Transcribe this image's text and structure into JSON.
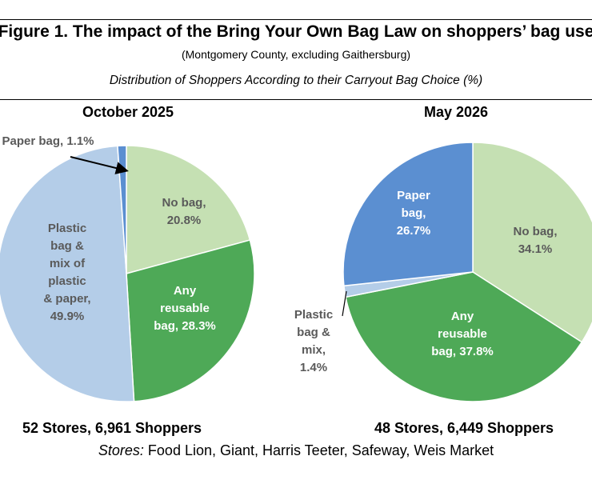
{
  "header": {
    "title": "Figure 1. The impact of the Bring Your Own Bag Law on shoppers’ bag use",
    "subtitle": "(Montgomery County, excluding Gaithersburg)",
    "caption": "Distribution of Shoppers According to their Carryout Bag Choice (%)"
  },
  "footer": {
    "stores_label": "Stores:",
    "stores_list": "Food Lion, Giant, Harris Teeter, Safeway, Weis Market"
  },
  "chart_data": [
    {
      "type": "pie",
      "title": "October 2025",
      "summary": "52 Stores, 6,961 Shoppers",
      "slices": [
        {
          "label": [
            "No bag,",
            "20.8%"
          ],
          "value": 20.8,
          "color": "#c5e0b3",
          "text_color": "#5a5a5a"
        },
        {
          "label": [
            "Any",
            "reusable",
            "bag, 28.3%"
          ],
          "value": 28.3,
          "color": "#4ea957",
          "text_color": "#ffffff"
        },
        {
          "label": [
            "Plastic",
            "bag &",
            "mix of",
            "plastic",
            "& paper,",
            "49.9%"
          ],
          "value": 49.9,
          "color": "#b4cde8",
          "text_color": "#5a5a5a"
        },
        {
          "label": [
            "Paper bag, 1.1%"
          ],
          "value": 1.1,
          "color": "#5b8fd1",
          "text_color": "#5a5a5a"
        }
      ]
    },
    {
      "type": "pie",
      "title": "May 2026",
      "summary": "48 Stores, 6,449 Shoppers",
      "slices": [
        {
          "label": [
            "No bag,",
            "34.1%"
          ],
          "value": 34.1,
          "color": "#c5e0b3",
          "text_color": "#5a5a5a"
        },
        {
          "label": [
            "Any",
            "reusable",
            "bag, 37.8%"
          ],
          "value": 37.8,
          "color": "#4ea957",
          "text_color": "#ffffff"
        },
        {
          "label": [
            "Plastic",
            "bag &",
            "mix,",
            "1.4%"
          ],
          "value": 1.4,
          "color": "#b4cde8",
          "text_color": "#5a5a5a"
        },
        {
          "label": [
            "Paper",
            "bag,",
            "26.7%"
          ],
          "value": 26.7,
          "color": "#5b8fd1",
          "text_color": "#ffffff"
        }
      ]
    }
  ]
}
